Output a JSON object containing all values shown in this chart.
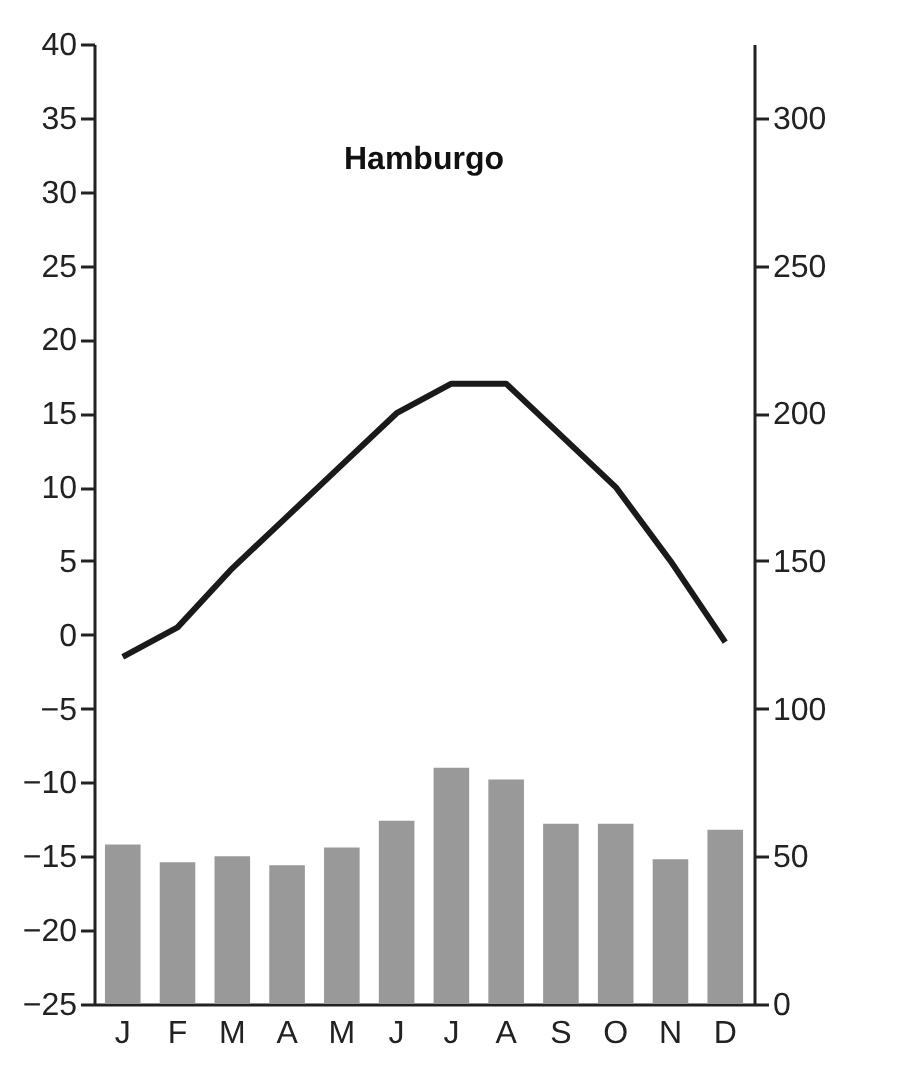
{
  "chart_data": {
    "type": "bar",
    "title": "Hamburgo",
    "categories": [
      "J",
      "F",
      "M",
      "A",
      "M",
      "J",
      "J",
      "A",
      "S",
      "O",
      "N",
      "D"
    ],
    "series": [
      {
        "axis": "y2",
        "color": "#999999",
        "values": [
          54,
          48,
          50,
          47,
          53,
          62,
          80,
          76,
          61,
          61,
          49,
          59
        ]
      },
      {
        "type": "line",
        "axis": "y",
        "color": "#1a1a1a",
        "values": [
          -1.5,
          0.5,
          4.5,
          8,
          11.5,
          15,
          17,
          17,
          13.5,
          10,
          5,
          -0.5
        ]
      }
    ],
    "ylim": [
      -25,
      40
    ],
    "yticks": [
      -25,
      -20,
      -15,
      -10,
      -5,
      0,
      5,
      10,
      15,
      20,
      25,
      30,
      35,
      40
    ],
    "y2lim": [
      0,
      325
    ],
    "y2ticks": [
      0,
      50,
      100,
      150,
      200,
      250,
      300
    ],
    "grid": false,
    "line_style": "solid",
    "marker": "none"
  }
}
